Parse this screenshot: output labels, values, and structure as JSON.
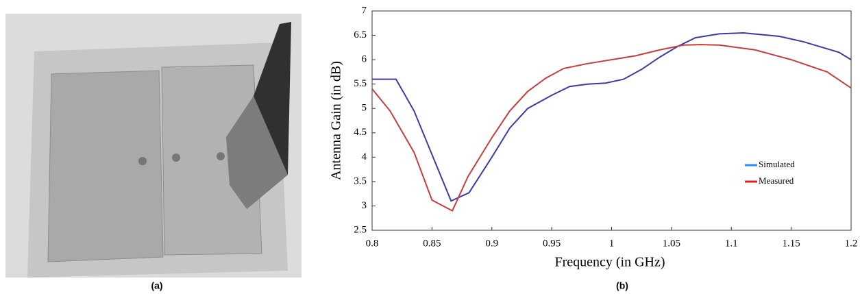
{
  "captions": [
    "(a)",
    "(b)"
  ],
  "chart_data": {
    "type": "line",
    "xlabel": "Frequency (in GHz)",
    "ylabel": "Antenna Gain (in dB)",
    "xlim": [
      0.8,
      1.2
    ],
    "ylim": [
      2.5,
      7
    ],
    "xticks": [
      0.8,
      0.85,
      0.9,
      0.95,
      1,
      1.05,
      1.1,
      1.15,
      1.2
    ],
    "yticks": [
      2.5,
      3,
      3.5,
      4,
      4.5,
      5,
      5.5,
      6,
      6.5,
      7
    ],
    "legend": "center right",
    "series": [
      {
        "name": "Simulated",
        "color": "#3a3aa8",
        "legend_color": "#1e8fff",
        "x": [
          0.8,
          0.82,
          0.835,
          0.866,
          0.881,
          0.9,
          0.915,
          0.93,
          0.95,
          0.965,
          0.98,
          0.995,
          1.01,
          1.025,
          1.04,
          1.055,
          1.07,
          1.09,
          1.11,
          1.14,
          1.16,
          1.19,
          1.2
        ],
        "values": [
          5.6,
          5.6,
          4.95,
          3.1,
          3.27,
          4.0,
          4.6,
          5.0,
          5.27,
          5.45,
          5.5,
          5.52,
          5.6,
          5.8,
          6.05,
          6.27,
          6.45,
          6.53,
          6.55,
          6.48,
          6.37,
          6.15,
          6.0
        ]
      },
      {
        "name": "Measured",
        "color": "#c83c3c",
        "legend_color": "#e02020",
        "x": [
          0.8,
          0.815,
          0.835,
          0.85,
          0.867,
          0.88,
          0.9,
          0.915,
          0.93,
          0.945,
          0.96,
          0.98,
          1.0,
          1.02,
          1.04,
          1.06,
          1.075,
          1.09,
          1.12,
          1.15,
          1.18,
          1.2
        ],
        "values": [
          5.4,
          4.95,
          4.1,
          3.12,
          2.9,
          3.6,
          4.4,
          4.95,
          5.35,
          5.62,
          5.82,
          5.92,
          6.0,
          6.08,
          6.2,
          6.3,
          6.31,
          6.3,
          6.2,
          6.0,
          5.75,
          5.42
        ]
      }
    ]
  }
}
